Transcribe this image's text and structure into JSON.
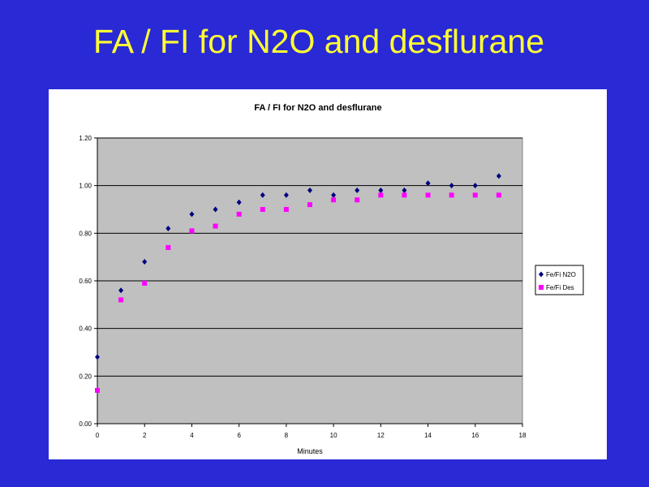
{
  "slide": {
    "title": "FA / FI for N2O and desflurane"
  },
  "chart_data": {
    "type": "scatter",
    "title": "FA / FI for N2O and desflurane",
    "xlabel": "Minutes",
    "ylabel": "",
    "xlim": [
      0,
      18
    ],
    "ylim": [
      0,
      1.2
    ],
    "x_ticks": [
      0,
      2,
      4,
      6,
      8,
      10,
      12,
      14,
      16,
      18
    ],
    "y_ticks": [
      "0.00",
      "0.20",
      "0.40",
      "0.60",
      "0.80",
      "1.00",
      "1.20"
    ],
    "grid": true,
    "legend_position": "right",
    "plot_background": "#c0c0c0",
    "series": [
      {
        "name": "Fe/Fi N2O",
        "marker": "diamond",
        "color": "#000080",
        "points": [
          [
            0,
            0.28
          ],
          [
            1,
            0.56
          ],
          [
            2,
            0.68
          ],
          [
            3,
            0.82
          ],
          [
            4,
            0.88
          ],
          [
            5,
            0.9
          ],
          [
            6,
            0.93
          ],
          [
            7,
            0.96
          ],
          [
            8,
            0.96
          ],
          [
            9,
            0.98
          ],
          [
            10,
            0.96
          ],
          [
            11,
            0.98
          ],
          [
            12,
            0.98
          ],
          [
            13,
            0.98
          ],
          [
            14,
            1.01
          ],
          [
            15,
            1.0
          ],
          [
            16,
            1.0
          ],
          [
            17,
            1.04
          ]
        ]
      },
      {
        "name": "Fe/Fi Des",
        "marker": "square",
        "color": "#ff00ff",
        "points": [
          [
            0,
            0.14
          ],
          [
            1,
            0.52
          ],
          [
            2,
            0.59
          ],
          [
            3,
            0.74
          ],
          [
            4,
            0.81
          ],
          [
            5,
            0.83
          ],
          [
            6,
            0.88
          ],
          [
            7,
            0.9
          ],
          [
            8,
            0.9
          ],
          [
            9,
            0.92
          ],
          [
            10,
            0.94
          ],
          [
            11,
            0.94
          ],
          [
            12,
            0.96
          ],
          [
            13,
            0.96
          ],
          [
            14,
            0.96
          ],
          [
            15,
            0.96
          ],
          [
            16,
            0.96
          ],
          [
            17,
            0.96
          ]
        ]
      }
    ]
  }
}
